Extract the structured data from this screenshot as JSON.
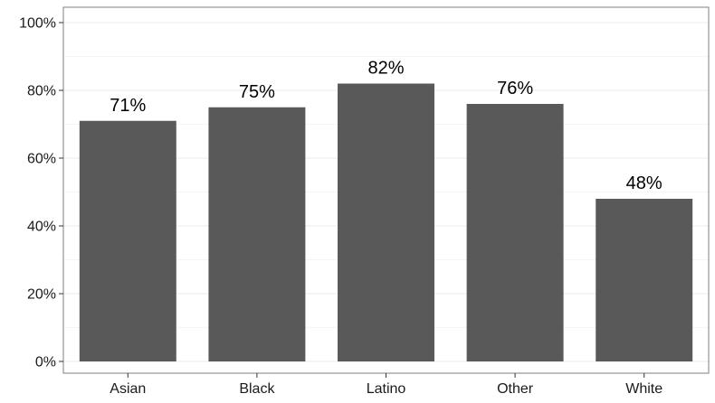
{
  "chart_data": {
    "type": "bar",
    "categories": [
      "Asian",
      "Black",
      "Latino",
      "Other",
      "White"
    ],
    "values": [
      71,
      75,
      82,
      76,
      48
    ],
    "data_labels": [
      "71%",
      "75%",
      "82%",
      "76%",
      "48%"
    ],
    "yticks": [
      0,
      20,
      40,
      60,
      80,
      100
    ],
    "ytick_labels": [
      "0%",
      "20%",
      "40%",
      "60%",
      "80%",
      "100%"
    ],
    "ylim": [
      0,
      100
    ],
    "title": "",
    "xlabel": "",
    "ylabel": "",
    "grid": true,
    "legend": "none",
    "colors": {
      "bar": "#595959",
      "grid": "#ebebeb",
      "axis": "#333333",
      "panel_border": "#7f7f7f"
    }
  }
}
